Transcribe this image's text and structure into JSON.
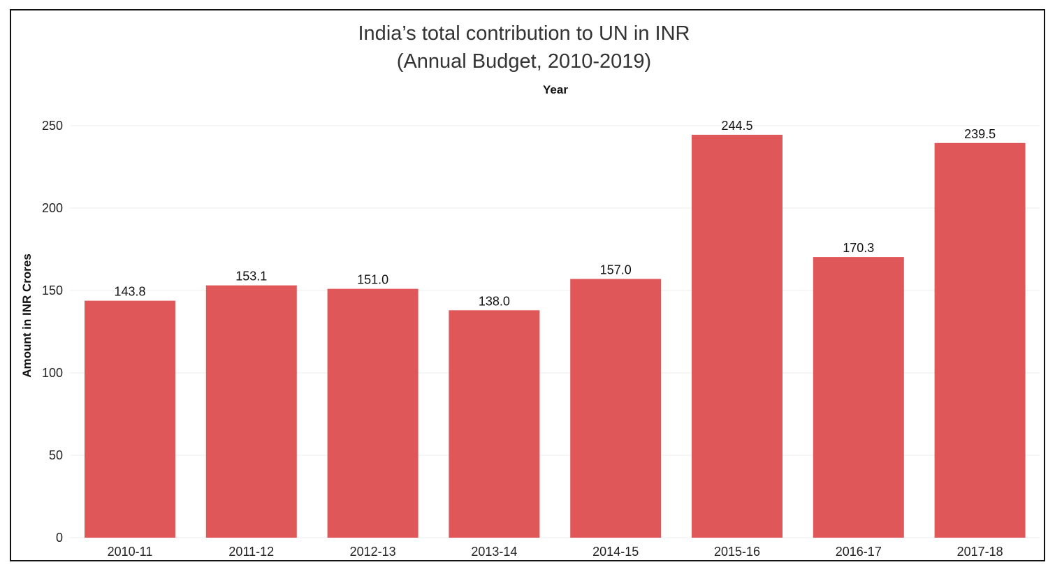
{
  "chart_data": {
    "type": "bar",
    "title": "India’s total contribution to UN in INR",
    "subtitle": "(Annual Budget, 2010-2019)",
    "xlabel": "Year",
    "ylabel": "Amount in INR Crores",
    "categories": [
      "2010-11",
      "2011-12",
      "2012-13",
      "2013-14",
      "2014-15",
      "2015-16",
      "2016-17",
      "2017-18"
    ],
    "values": [
      143.8,
      153.1,
      151.0,
      138.0,
      157.0,
      244.5,
      170.3,
      239.5
    ],
    "value_labels": [
      "143.8",
      "153.1",
      "151.0",
      "138.0",
      "157.0",
      "244.5",
      "170.3",
      "239.5"
    ],
    "yticks": [
      0,
      50,
      100,
      150,
      200,
      250
    ],
    "ylim": [
      0,
      260
    ],
    "grid": true,
    "bar_color": "#e05759",
    "grid_color": "#ececec"
  }
}
